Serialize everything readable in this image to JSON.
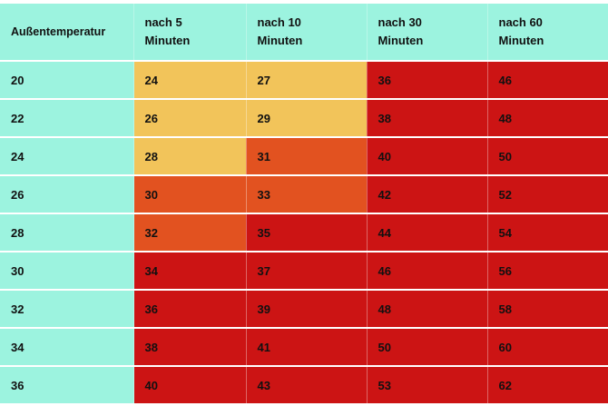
{
  "table": {
    "headers": [
      "Außentemperatur",
      "nach 5\nMinuten",
      "nach 10\nMinuten",
      "nach 30\nMinuten",
      "nach 60\nMinuten"
    ],
    "levels": {
      "low": "#f2c45a",
      "medium": "#e25220",
      "high": "#cc1414"
    },
    "rows": [
      {
        "outside": "20",
        "cells": [
          {
            "v": "24",
            "level": "low"
          },
          {
            "v": "27",
            "level": "low"
          },
          {
            "v": "36",
            "level": "high"
          },
          {
            "v": "46",
            "level": "high"
          }
        ]
      },
      {
        "outside": "22",
        "cells": [
          {
            "v": "26",
            "level": "low"
          },
          {
            "v": "29",
            "level": "low"
          },
          {
            "v": "38",
            "level": "high"
          },
          {
            "v": "48",
            "level": "high"
          }
        ]
      },
      {
        "outside": "24",
        "cells": [
          {
            "v": "28",
            "level": "low"
          },
          {
            "v": "31",
            "level": "medium"
          },
          {
            "v": "40",
            "level": "high"
          },
          {
            "v": "50",
            "level": "high"
          }
        ]
      },
      {
        "outside": "26",
        "cells": [
          {
            "v": "30",
            "level": "medium"
          },
          {
            "v": "33",
            "level": "medium"
          },
          {
            "v": "42",
            "level": "high"
          },
          {
            "v": "52",
            "level": "high"
          }
        ]
      },
      {
        "outside": "28",
        "cells": [
          {
            "v": "32",
            "level": "medium"
          },
          {
            "v": "35",
            "level": "high"
          },
          {
            "v": "44",
            "level": "high"
          },
          {
            "v": "54",
            "level": "high"
          }
        ]
      },
      {
        "outside": "30",
        "cells": [
          {
            "v": "34",
            "level": "high"
          },
          {
            "v": "37",
            "level": "high"
          },
          {
            "v": "46",
            "level": "high"
          },
          {
            "v": "56",
            "level": "high"
          }
        ]
      },
      {
        "outside": "32",
        "cells": [
          {
            "v": "36",
            "level": "high"
          },
          {
            "v": "39",
            "level": "high"
          },
          {
            "v": "48",
            "level": "high"
          },
          {
            "v": "58",
            "level": "high"
          }
        ]
      },
      {
        "outside": "34",
        "cells": [
          {
            "v": "38",
            "level": "high"
          },
          {
            "v": "41",
            "level": "high"
          },
          {
            "v": "50",
            "level": "high"
          },
          {
            "v": "60",
            "level": "high"
          }
        ]
      },
      {
        "outside": "36",
        "cells": [
          {
            "v": "40",
            "level": "high"
          },
          {
            "v": "43",
            "level": "high"
          },
          {
            "v": "53",
            "level": "high"
          },
          {
            "v": "62",
            "level": "high"
          }
        ]
      }
    ]
  }
}
